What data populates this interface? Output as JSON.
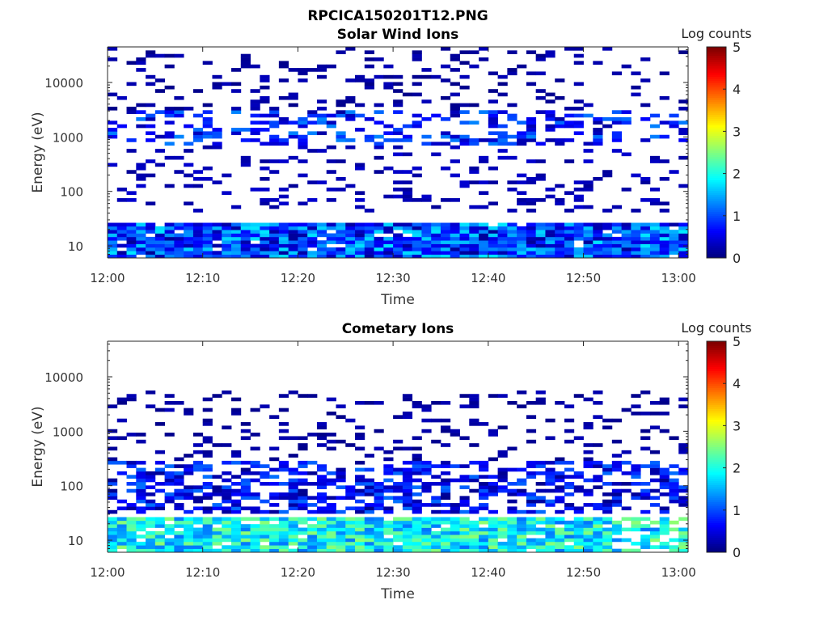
{
  "figure": {
    "title": "RPCICA150201T12.PNG"
  },
  "chart_data": [
    {
      "type": "heatmap",
      "title": "Solar Wind Ions",
      "xlabel": "Time",
      "ylabel": "Energy (eV)",
      "x_ticks": [
        "12:00",
        "12:10",
        "12:20",
        "12:30",
        "12:40",
        "12:50",
        "13:00"
      ],
      "y_ticks": [
        "10",
        "100",
        "1000",
        "10000"
      ],
      "y_scale": "log",
      "ylim": [
        6,
        45000
      ],
      "xlim": [
        "12:00",
        "13:01"
      ],
      "colorbar": {
        "label": "Log counts",
        "ticks": [
          "0",
          "1",
          "2",
          "3",
          "4",
          "5"
        ],
        "range": [
          0,
          5
        ],
        "colormap": "jet"
      },
      "rows_summary": [
        {
          "energy_range_eV": [
            6,
            28
          ],
          "typical_log_counts": 0.6,
          "peak_log_counts": 1.8,
          "note": "continuous band, brightest"
        },
        {
          "energy_range_eV": [
            40,
            700
          ],
          "typical_log_counts": 0.2,
          "note": "sparse dark blue bars"
        },
        {
          "energy_range_eV": [
            700,
            3000
          ],
          "typical_log_counts": 0.5,
          "peak_log_counts": 1.3,
          "note": "intermittent blue bars"
        },
        {
          "energy_range_eV": [
            3000,
            45000
          ],
          "typical_log_counts": 0.1,
          "note": "sparse thin lines"
        }
      ]
    },
    {
      "type": "heatmap",
      "title": "Cometary Ions",
      "xlabel": "Time",
      "ylabel": "Energy (eV)",
      "x_ticks": [
        "12:00",
        "12:10",
        "12:20",
        "12:30",
        "12:40",
        "12:50",
        "13:00"
      ],
      "y_ticks": [
        "10",
        "100",
        "1000",
        "10000"
      ],
      "y_scale": "log",
      "ylim": [
        6,
        45000
      ],
      "xlim": [
        "12:00",
        "13:01"
      ],
      "colorbar": {
        "label": "Log counts",
        "ticks": [
          "0",
          "1",
          "2",
          "3",
          "4",
          "5"
        ],
        "range": [
          0,
          5
        ],
        "colormap": "jet"
      },
      "rows_summary": [
        {
          "energy_range_eV": [
            6,
            28
          ],
          "typical_log_counts": 1.6,
          "peak_log_counts": 2.6,
          "note": "continuous band, cyan-green"
        },
        {
          "energy_range_eV": [
            30,
            300
          ],
          "typical_log_counts": 0.4,
          "peak_log_counts": 1.2,
          "note": "dense blue blocks"
        },
        {
          "energy_range_eV": [
            300,
            6000
          ],
          "typical_log_counts": 0.1,
          "note": "sparse dark blue bars"
        }
      ]
    }
  ]
}
